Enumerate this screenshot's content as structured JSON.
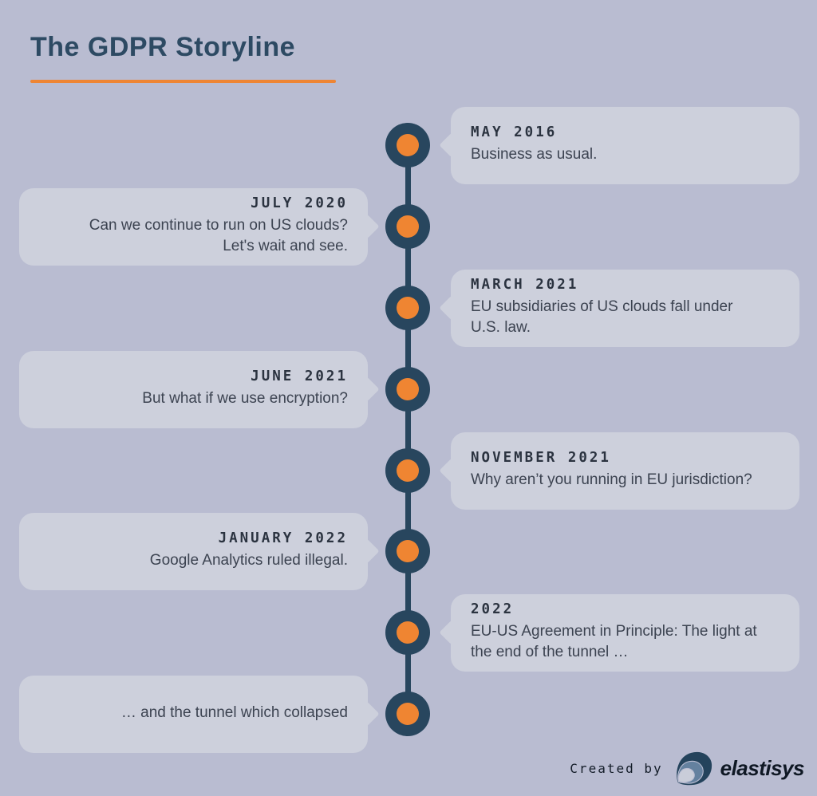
{
  "header": {
    "title": "The GDPR Storyline"
  },
  "timeline": {
    "entries": [
      {
        "side": "right",
        "date": "MAY 2016",
        "text": "Business as usual."
      },
      {
        "side": "left",
        "date": "JULY 2020",
        "text": "Can we continue to run on US clouds?\nLet's wait and see."
      },
      {
        "side": "right",
        "date": "MARCH 2021",
        "text": "EU subsidiaries of US clouds fall under\nU.S. law."
      },
      {
        "side": "left",
        "date": "JUNE 2021",
        "text": "But what if we use encryption?"
      },
      {
        "side": "right",
        "date": "NOVEMBER 2021",
        "text": "Why aren’t you running in EU jurisdiction?"
      },
      {
        "side": "left",
        "date": "JANUARY 2022",
        "text": "Google Analytics ruled illegal."
      },
      {
        "side": "right",
        "date": "2022",
        "text": "EU-US Agreement in Principle: The light at\nthe end of the tunnel …"
      },
      {
        "side": "left",
        "date": "",
        "text": "… and the tunnel which collapsed"
      }
    ]
  },
  "footer": {
    "created_by": "Created by",
    "brand": "elastisys",
    "logo_icon": "elastisys-swirl-icon"
  },
  "colors": {
    "background": "#b9bcd1",
    "card": "#cdd0dc",
    "timeline_navy": "#28465e",
    "node_orange": "#ef8532",
    "title_navy": "#2d4a63",
    "accent_rule_orange": "#ee8534",
    "date_text": "#2b3340",
    "body_text": "#3c4351"
  }
}
